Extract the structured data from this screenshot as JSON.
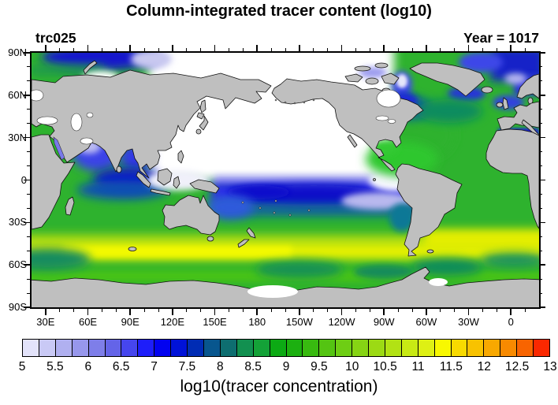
{
  "title": "Column-integrated tracer content (log10)",
  "annotations": {
    "left": "trc025",
    "right": "Year = 1017"
  },
  "axes": {
    "lat_labels": [
      "90N",
      "60N",
      "30N",
      "0",
      "30S",
      "60S",
      "90S"
    ],
    "lon_labels": [
      "30E",
      "60E",
      "90E",
      "120E",
      "150E",
      "180",
      "150W",
      "120W",
      "90W",
      "60W",
      "30W",
      "0"
    ]
  },
  "colorbar": {
    "caption": "log10(tracer concentration)",
    "labels": [
      "5",
      "5.5",
      "6",
      "6.5",
      "7",
      "7.5",
      "8",
      "8.5",
      "9",
      "9.5",
      "10",
      "10.5",
      "11",
      "11.5",
      "12",
      "12.5",
      "13"
    ],
    "colors": [
      "#e3e3fa",
      "#c9c9f5",
      "#b0b0f0",
      "#9797ec",
      "#7e7ee9",
      "#6464e8",
      "#4646ee",
      "#1e1efa",
      "#0202f0",
      "#0012d8",
      "#002cb4",
      "#08568e",
      "#0e6e70",
      "#129050",
      "#14a238",
      "#0caa14",
      "#1cb010",
      "#38ba10",
      "#54c412",
      "#6ece14",
      "#86d414",
      "#9cda14",
      "#b2e214",
      "#c8ea14",
      "#def014",
      "#f8f800",
      "#f8da00",
      "#f8c200",
      "#f8a800",
      "#f88a00",
      "#f86400",
      "#fa2800"
    ]
  },
  "chart_data": {
    "type": "heatmap",
    "subtype": "filled-contour-world-map",
    "projection": "cylindrical equidistant, Pacific-centered, longitude range 20E to 380E (20E)",
    "title": "Column-integrated tracer content (log10)",
    "tracer_name": "trc025",
    "year": 1017,
    "field_label": "log10(tracer concentration)",
    "contour_levels": {
      "min": 5,
      "max": 13,
      "step": 0.25,
      "n_colors": 32
    },
    "lat_axis": {
      "range": [
        -90,
        90
      ],
      "major_tick_deg": 30,
      "minor_tick_deg": 10
    },
    "lon_axis": {
      "range": [
        20,
        380
      ],
      "major_tick_deg": 30,
      "minor_tick_deg": 10
    },
    "land_color": "#bfbfbf",
    "missing_below_min_color": "#ffffff",
    "regions": [
      {
        "region": "North Pacific (20N-65N) and equatorial Pacific cold tongue",
        "approx_value": "below 5 (white, under colorbar minimum)"
      },
      {
        "region": "South equatorial Pacific band 0-5S",
        "approx_value": "5-6 (pale lavender)"
      },
      {
        "region": "South Pacific 5-20S core",
        "approx_value": "7-8.5 (blue to dark blue)"
      },
      {
        "region": "Eastern tropical Pacific off South America",
        "approx_value": "below 5 to 6 (white/lavender)"
      },
      {
        "region": "Arabian Sea and Bay of Bengal",
        "approx_value": "6-8 (blues)"
      },
      {
        "region": "South of India / tropical Indian Ocean",
        "approx_value": "7-8.5 (dark blue)"
      },
      {
        "region": "Arctic shelf seas 20E-130E",
        "approx_value": "7-9.5 (dark blue over green)"
      },
      {
        "region": "Central Arctic near dateline",
        "approx_value": "below 5 (white)"
      },
      {
        "region": "Nordic seas / Norwegian coast",
        "approx_value": "7-8 (blue)"
      },
      {
        "region": "Labrador Sea and Baffin Bay",
        "approx_value": "6.5-8.5 (blue, teal)"
      },
      {
        "region": "Mediterranean Sea",
        "approx_value": "7-8 (blue)"
      },
      {
        "region": "North and tropical Atlantic",
        "approx_value": "9-9.5 (green)"
      },
      {
        "region": "Caribbean / Gulf of Mexico",
        "approx_value": "9.5 (bright green)"
      },
      {
        "region": "Southern Ocean 40-55S circumpolar band",
        "approx_value": "10.5-11 (yellow)"
      },
      {
        "region": "Subantarctic 55-70S",
        "approx_value": "9.5-10 (green with teal patches)"
      },
      {
        "region": "Ross Sea ice-shelf area and Hudson Bay",
        "approx_value": "no data (white)"
      },
      {
        "region": "Continents and Antarctica",
        "approx_value": "land mask (gray)"
      }
    ]
  }
}
